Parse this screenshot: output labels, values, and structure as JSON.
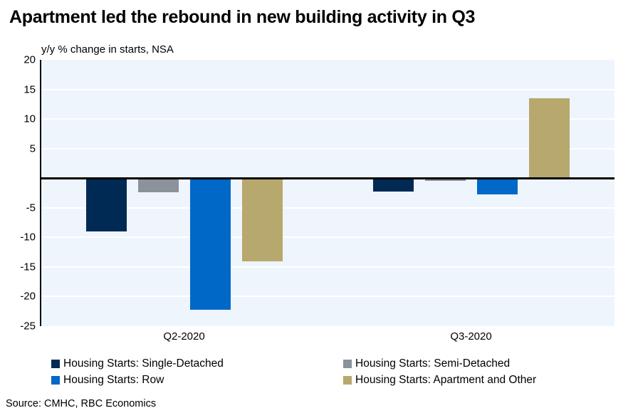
{
  "title": "Apartment led the rebound in new building activity in Q3",
  "subtitle": "y/y % change in starts, NSA",
  "source": "Source: CMHC, RBC Economics",
  "colors": {
    "plot_background": "#EEF5FD",
    "gridline": "#FFFFFF",
    "axis": "#000000",
    "single_detached": "#002A54",
    "semi_detached": "#8B929B",
    "row": "#0068C7",
    "apartment_and_other": "#B7A86E"
  },
  "chart_data": {
    "type": "bar",
    "categories": [
      "Q2-2020",
      "Q3-2020"
    ],
    "series": [
      {
        "name": "Housing Starts: Single-Detached",
        "color": "#002A54",
        "values": [
          -9.0,
          -2.2
        ]
      },
      {
        "name": "Housing Starts: Semi-Detached",
        "color": "#8B929B",
        "values": [
          -2.4,
          -0.5
        ]
      },
      {
        "name": "Housing Starts: Row",
        "color": "#0068C7",
        "values": [
          -22.2,
          -2.7
        ]
      },
      {
        "name": "Housing Starts: Apartment and Other",
        "color": "#B7A86E",
        "values": [
          -14.0,
          13.5
        ]
      }
    ],
    "ylim": [
      -25,
      20
    ],
    "ytick_step": 5,
    "yticks_labeled": [
      20,
      15,
      10,
      5,
      -5,
      -10,
      -15,
      -20,
      -25
    ],
    "zero_line": true,
    "grid": true,
    "legend_position": "bottom"
  }
}
